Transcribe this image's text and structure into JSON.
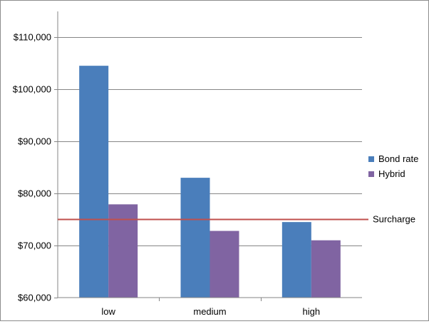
{
  "chart_data": {
    "type": "bar",
    "categories": [
      "low",
      "medium",
      "high"
    ],
    "series": [
      {
        "name": "Bond rate",
        "values": [
          104500,
          83000,
          74500
        ],
        "color": "#4a7ebb"
      },
      {
        "name": "Hybrid",
        "values": [
          77900,
          72800,
          71000
        ],
        "color": "#8064a2"
      }
    ],
    "reference_line": {
      "label": "Surcharge",
      "value": 75000,
      "color": "#c0504d"
    },
    "ylim": [
      60000,
      110000
    ],
    "yticks": [
      {
        "value": 60000,
        "label": "$60,000"
      },
      {
        "value": 70000,
        "label": "$70,000"
      },
      {
        "value": 80000,
        "label": "$80,000"
      },
      {
        "value": 90000,
        "label": "$90,000"
      },
      {
        "value": 100000,
        "label": "$100,000"
      },
      {
        "value": 110000,
        "label": "$110,000"
      }
    ],
    "grid": true,
    "legend_position": "right",
    "title": "",
    "xlabel": "",
    "ylabel": ""
  }
}
